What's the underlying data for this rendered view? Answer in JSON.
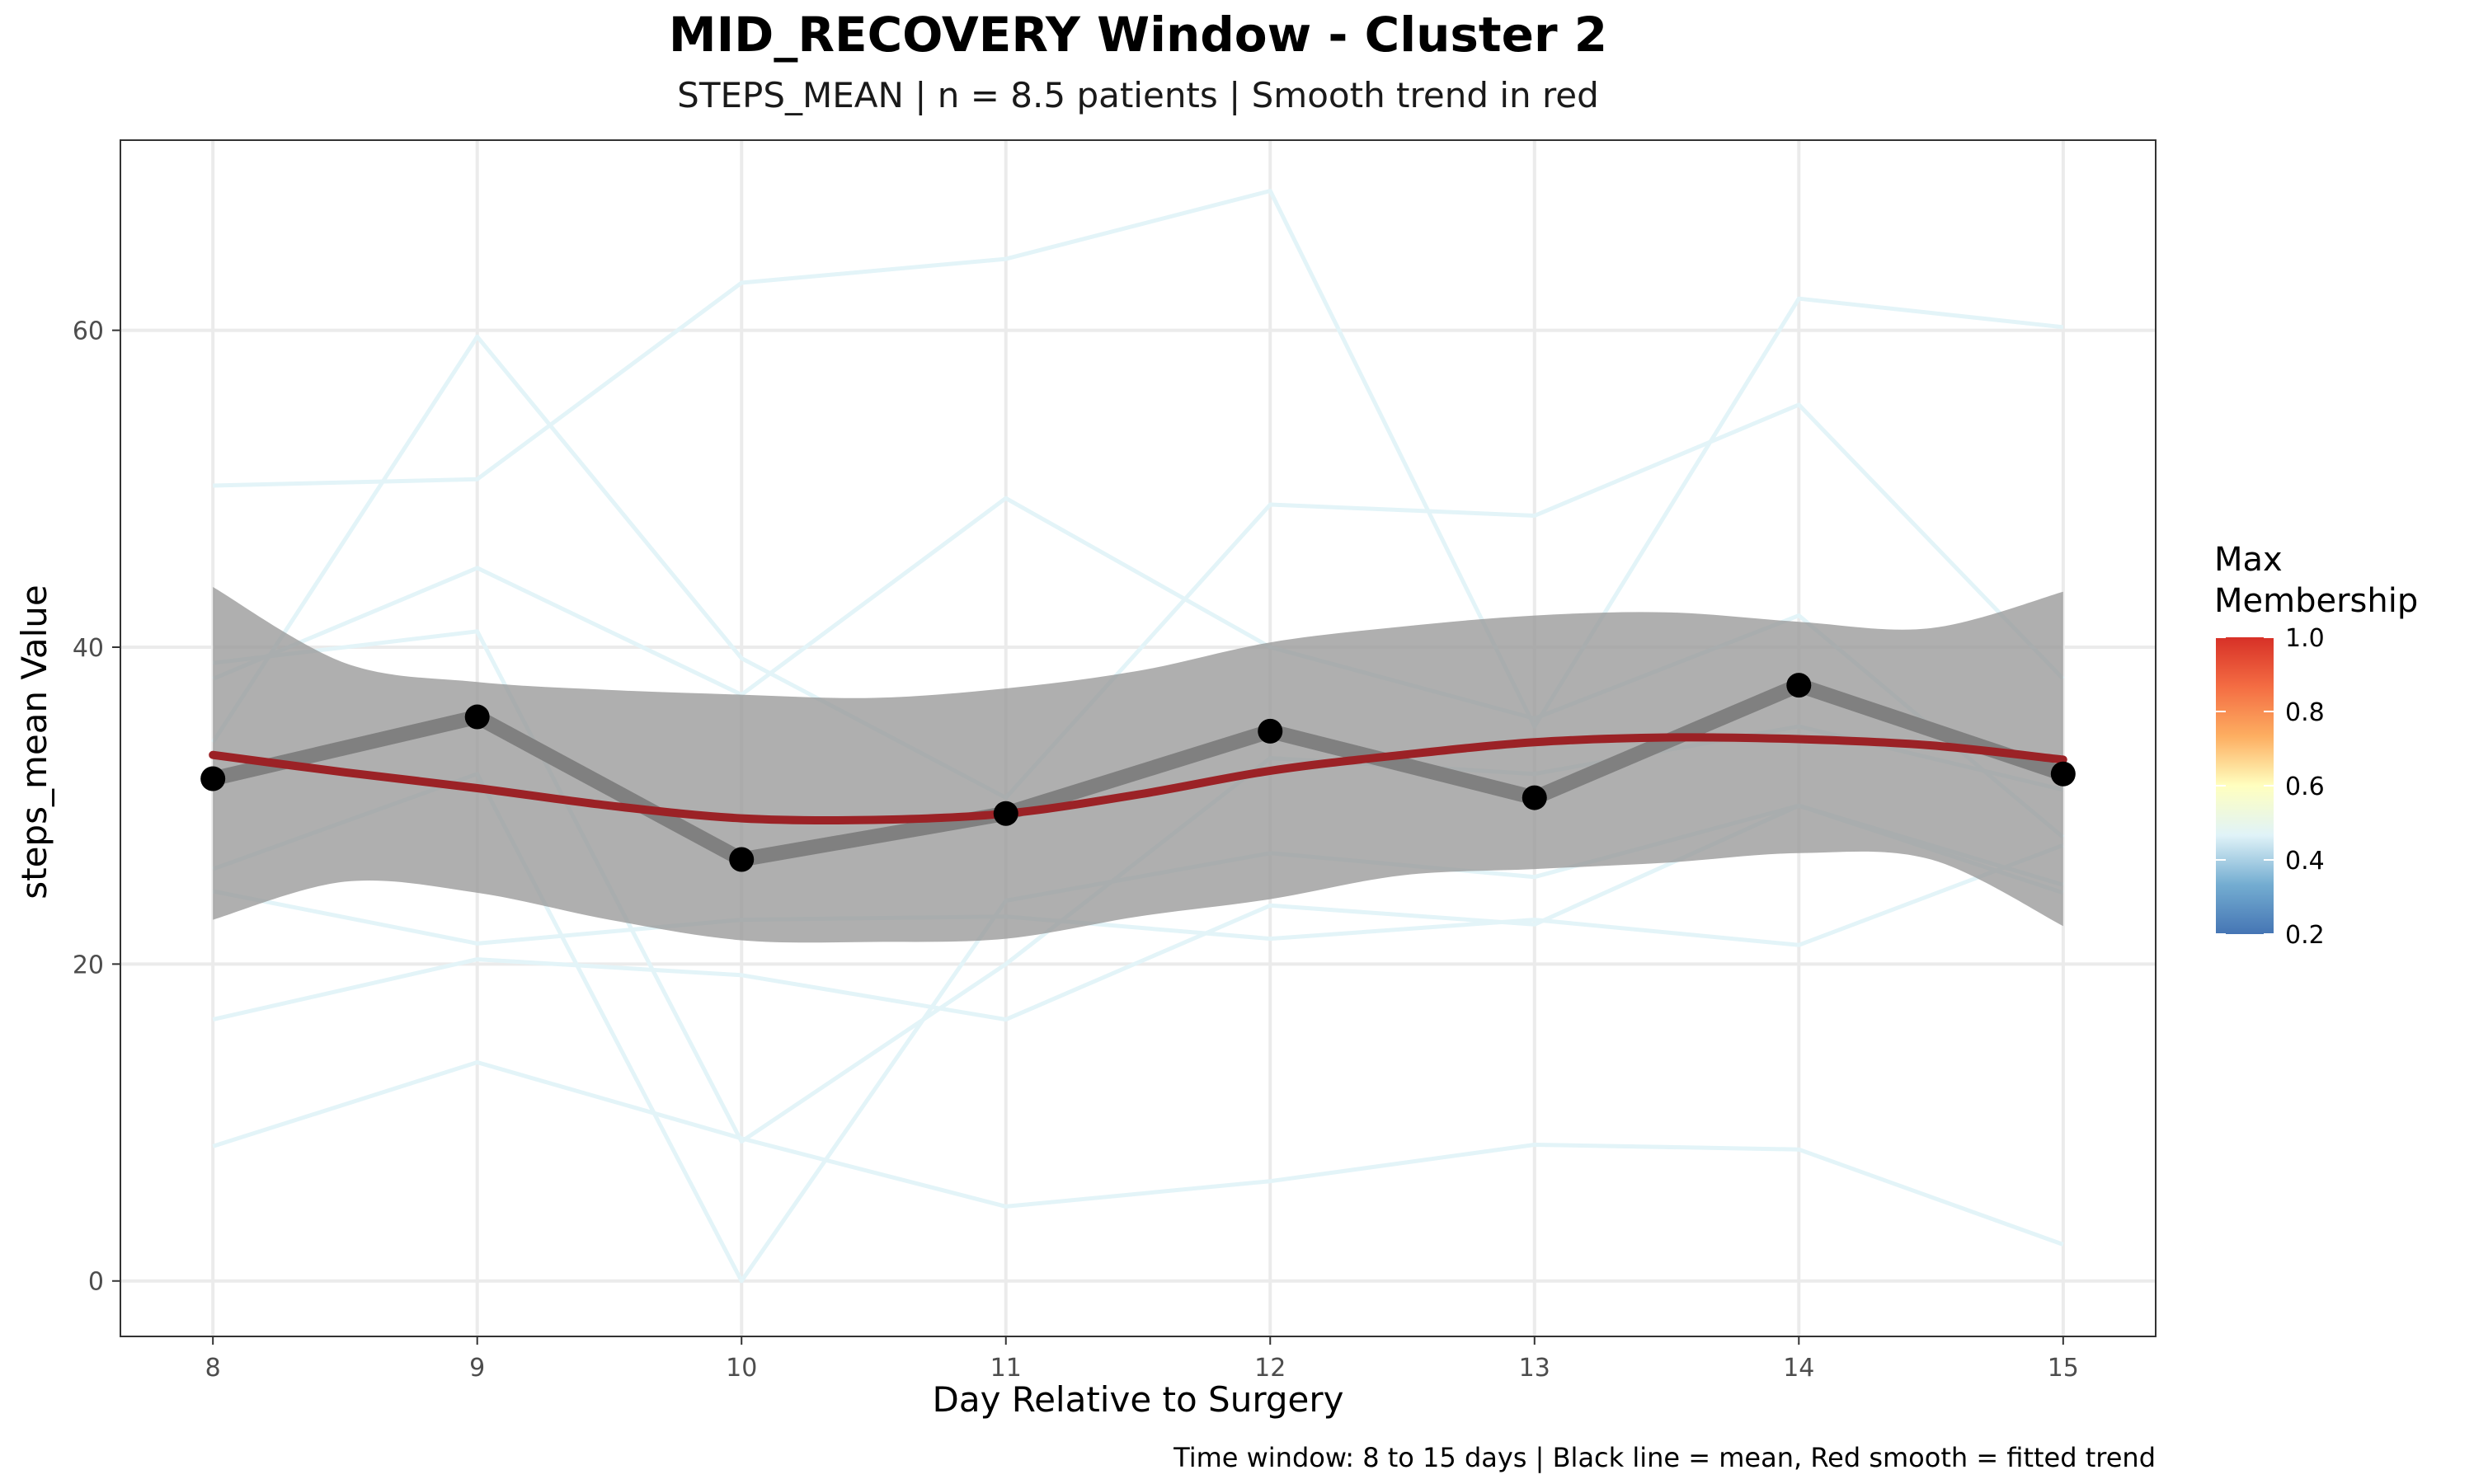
{
  "chart_data": {
    "type": "line",
    "title": "MID_RECOVERY Window - Cluster 2",
    "subtitle": "STEPS_MEAN | n = 8.5 patients | Smooth trend in red",
    "xlabel": "Day Relative to Surgery",
    "ylabel": "steps_mean Value",
    "caption": "Time window: 8 to 15 days | Black line = mean, Red smooth = fitted trend",
    "x": [
      8,
      9,
      10,
      11,
      12,
      13,
      14,
      15
    ],
    "xlim": [
      7.65,
      15.35
    ],
    "ylim": [
      -3.5,
      72
    ],
    "x_ticks": [
      "8",
      "9",
      "10",
      "11",
      "12",
      "13",
      "14",
      "15"
    ],
    "y_ticks": [
      "0",
      "20",
      "40",
      "60"
    ],
    "y_tick_values": [
      0,
      20,
      40,
      60
    ],
    "grid": true,
    "colors": {
      "individual": "#e3f4f8",
      "mean_line": "#808080",
      "mean_points": "#000000",
      "ribbon": "#999999",
      "smooth": "#9b2226",
      "grid": "#ebebeb",
      "panel_border": "#333333"
    },
    "individual_series": [
      {
        "values": [
          50.2,
          50.6,
          63.0,
          64.5,
          68.8,
          35.0,
          62.0,
          60.2
        ]
      },
      {
        "values": [
          34.0,
          59.6,
          39.3,
          30.5,
          49.0,
          48.3,
          55.3,
          38.0
        ]
      },
      {
        "values": [
          38.0,
          45.0,
          37.0,
          49.4,
          40.0,
          35.5,
          42.0,
          28.0
        ]
      },
      {
        "values": [
          24.6,
          21.3,
          22.8,
          23.0,
          21.6,
          22.8,
          21.2,
          27.5
        ]
      },
      {
        "values": [
          16.5,
          20.3,
          19.3,
          16.5,
          23.7,
          22.5,
          30.0,
          25.0
        ]
      },
      {
        "values": [
          8.5,
          13.8,
          9.0,
          4.7,
          6.3,
          8.6,
          8.3,
          2.3
        ]
      },
      {
        "values": [
          26.0,
          32.0,
          0.0,
          24.0,
          27.0,
          25.5,
          30.0,
          24.5
        ]
      },
      {
        "values": [
          39.0,
          41.0,
          8.8,
          20.0,
          33.0,
          32.0,
          35.0,
          31.0
        ]
      }
    ],
    "mean_series": {
      "values": [
        31.7,
        35.6,
        26.6,
        29.5,
        34.7,
        30.5,
        37.6,
        32.0
      ]
    },
    "smooth_series": {
      "x": [
        8,
        8.5,
        9,
        9.5,
        10,
        10.5,
        11,
        11.5,
        12,
        12.5,
        13,
        13.5,
        14,
        14.5,
        15
      ],
      "values": [
        33.2,
        32.1,
        31.1,
        30.0,
        29.2,
        29.1,
        29.5,
        30.7,
        32.2,
        33.2,
        34.0,
        34.3,
        34.2,
        33.8,
        32.9
      ],
      "ribbon_upper": [
        43.8,
        39.0,
        37.8,
        37.3,
        37.0,
        36.8,
        37.4,
        38.5,
        40.3,
        41.3,
        42.0,
        42.2,
        41.6,
        41.2,
        43.5
      ],
      "ribbon_lower": [
        22.8,
        25.2,
        24.5,
        22.8,
        21.5,
        21.4,
        21.6,
        23.0,
        24.1,
        25.6,
        26.0,
        26.4,
        27.0,
        26.6,
        22.4
      ]
    },
    "legend": {
      "title_lines": [
        "Max",
        "Membership"
      ],
      "type": "colorbar",
      "placement": "right",
      "range": [
        0.2,
        1.0
      ],
      "ticks": [
        "0.2",
        "0.4",
        "0.6",
        "0.8",
        "1.0"
      ],
      "tick_values": [
        0.2,
        0.4,
        0.6,
        0.8,
        1.0
      ],
      "colors": [
        "#4575b4",
        "#74add1",
        "#e0f3f8",
        "#ffffbf",
        "#fdae61",
        "#f46d43",
        "#d73027"
      ]
    }
  }
}
